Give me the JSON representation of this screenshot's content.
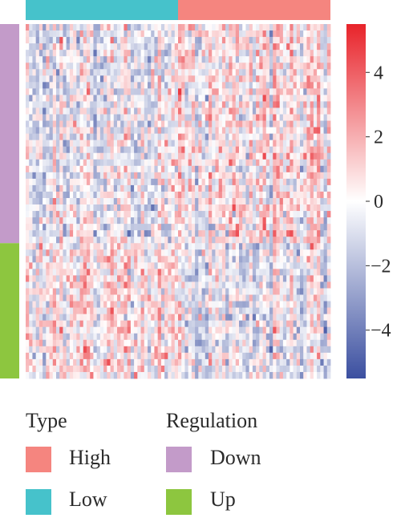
{
  "chart_data": {
    "type": "heatmap",
    "title": "",
    "xlabel": "",
    "ylabel": "",
    "colorbar": {
      "ticks": [
        4,
        2,
        0,
        -2,
        -4
      ],
      "tick_labels": [
        "4",
        "2",
        "0",
        "−2",
        "−4"
      ],
      "range": [
        -5.5,
        5.5
      ],
      "low_color": "#3b4fa0",
      "mid_color": "#ffffff",
      "high_color": "#e8232a"
    },
    "column_annotation": {
      "name": "Type",
      "groups": [
        {
          "label": "Low",
          "count": 45,
          "color": "#46c2cb"
        },
        {
          "label": "High",
          "count": 45,
          "color": "#f5857f"
        }
      ]
    },
    "row_annotation": {
      "name": "Regulation",
      "groups": [
        {
          "label": "Down",
          "count": 34,
          "color": "#c39bc9"
        },
        {
          "label": "Up",
          "count": 21,
          "color": "#8dc63f"
        }
      ]
    },
    "n_columns": 90,
    "n_rows": 55
  },
  "legend": {
    "type_title": "Type",
    "type_items": [
      {
        "label": "High",
        "color": "#f5857f"
      },
      {
        "label": "Low",
        "color": "#46c2cb"
      }
    ],
    "regulation_title": "Regulation",
    "regulation_items": [
      {
        "label": "Down",
        "color": "#c39bc9"
      },
      {
        "label": "Up",
        "color": "#8dc63f"
      }
    ]
  }
}
